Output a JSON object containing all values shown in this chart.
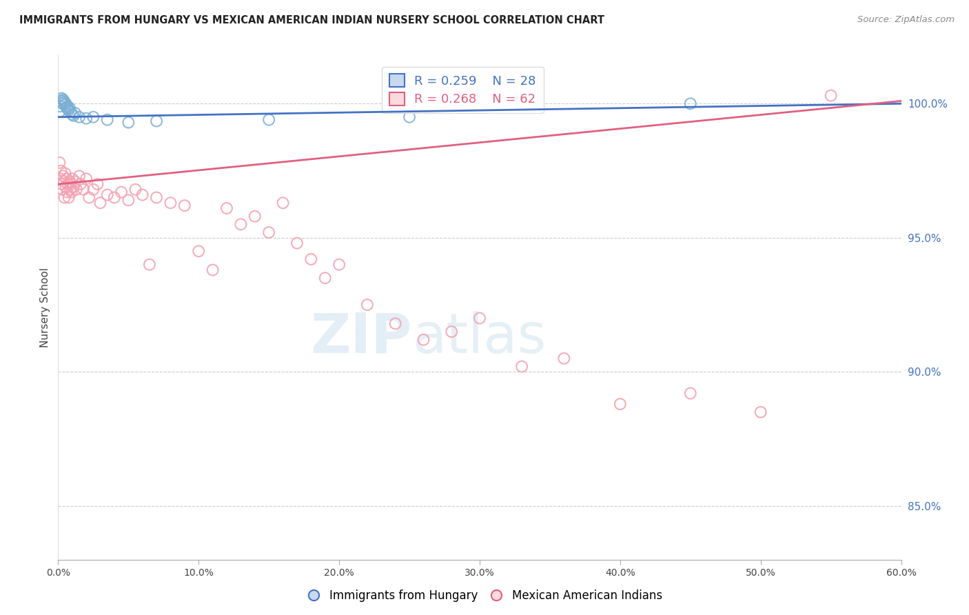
{
  "title": "IMMIGRANTS FROM HUNGARY VS MEXICAN AMERICAN INDIAN NURSERY SCHOOL CORRELATION CHART",
  "source": "Source: ZipAtlas.com",
  "ylabel": "Nursery School",
  "x_min": 0.0,
  "x_max": 60.0,
  "y_min": 83.0,
  "y_max": 101.8,
  "yticks": [
    85.0,
    90.0,
    95.0,
    100.0
  ],
  "xticks": [
    0.0,
    10.0,
    20.0,
    30.0,
    40.0,
    50.0,
    60.0
  ],
  "xtick_labels": [
    "0.0%",
    "10.0%",
    "20.0%",
    "30.0%",
    "40.0%",
    "50.0%",
    "60.0%"
  ],
  "ytick_labels": [
    "85.0%",
    "90.0%",
    "95.0%",
    "100.0%"
  ],
  "blue_color": "#7BAFD4",
  "pink_color": "#F4A0B0",
  "blue_line_color": "#4472C4",
  "pink_line_color": "#E06080",
  "legend_blue_R": "0.259",
  "legend_blue_N": "28",
  "legend_pink_R": "0.268",
  "legend_pink_N": "62",
  "blue_x": [
    0.1,
    0.15,
    0.2,
    0.25,
    0.3,
    0.35,
    0.4,
    0.45,
    0.5,
    0.55,
    0.6,
    0.65,
    0.7,
    0.75,
    0.8,
    0.9,
    1.0,
    1.1,
    1.2,
    1.5,
    2.0,
    2.5,
    3.5,
    5.0,
    7.0,
    15.0,
    25.0,
    45.0
  ],
  "blue_y": [
    99.7,
    99.9,
    100.1,
    100.2,
    100.0,
    100.15,
    100.1,
    100.05,
    99.95,
    100.0,
    99.85,
    99.9,
    99.8,
    99.75,
    99.85,
    99.7,
    99.6,
    99.55,
    99.65,
    99.5,
    99.45,
    99.5,
    99.4,
    99.3,
    99.35,
    99.4,
    99.5,
    100.0
  ],
  "pink_x": [
    0.1,
    0.15,
    0.2,
    0.25,
    0.3,
    0.35,
    0.4,
    0.45,
    0.5,
    0.55,
    0.6,
    0.65,
    0.7,
    0.75,
    0.8,
    0.85,
    0.9,
    0.95,
    1.0,
    1.1,
    1.2,
    1.3,
    1.5,
    1.6,
    1.8,
    2.0,
    2.2,
    2.5,
    2.8,
    3.0,
    3.5,
    4.0,
    4.5,
    5.0,
    5.5,
    6.0,
    6.5,
    7.0,
    8.0,
    9.0,
    10.0,
    11.0,
    12.0,
    13.0,
    14.0,
    15.0,
    16.0,
    17.0,
    18.0,
    19.0,
    20.0,
    22.0,
    24.0,
    26.0,
    28.0,
    30.0,
    33.0,
    36.0,
    40.0,
    45.0,
    50.0,
    55.0
  ],
  "pink_y": [
    97.8,
    97.2,
    97.5,
    97.0,
    96.8,
    97.3,
    97.1,
    96.5,
    97.4,
    96.9,
    97.2,
    96.7,
    97.0,
    96.5,
    97.1,
    96.8,
    97.0,
    96.7,
    97.2,
    96.9,
    97.1,
    96.8,
    97.3,
    97.0,
    96.8,
    97.2,
    96.5,
    96.8,
    97.0,
    96.3,
    96.6,
    96.5,
    96.7,
    96.4,
    96.8,
    96.6,
    94.0,
    96.5,
    96.3,
    96.2,
    94.5,
    93.8,
    96.1,
    95.5,
    95.8,
    95.2,
    96.3,
    94.8,
    94.2,
    93.5,
    94.0,
    92.5,
    91.8,
    91.2,
    91.5,
    92.0,
    90.2,
    90.5,
    88.8,
    89.2,
    88.5,
    100.3
  ]
}
